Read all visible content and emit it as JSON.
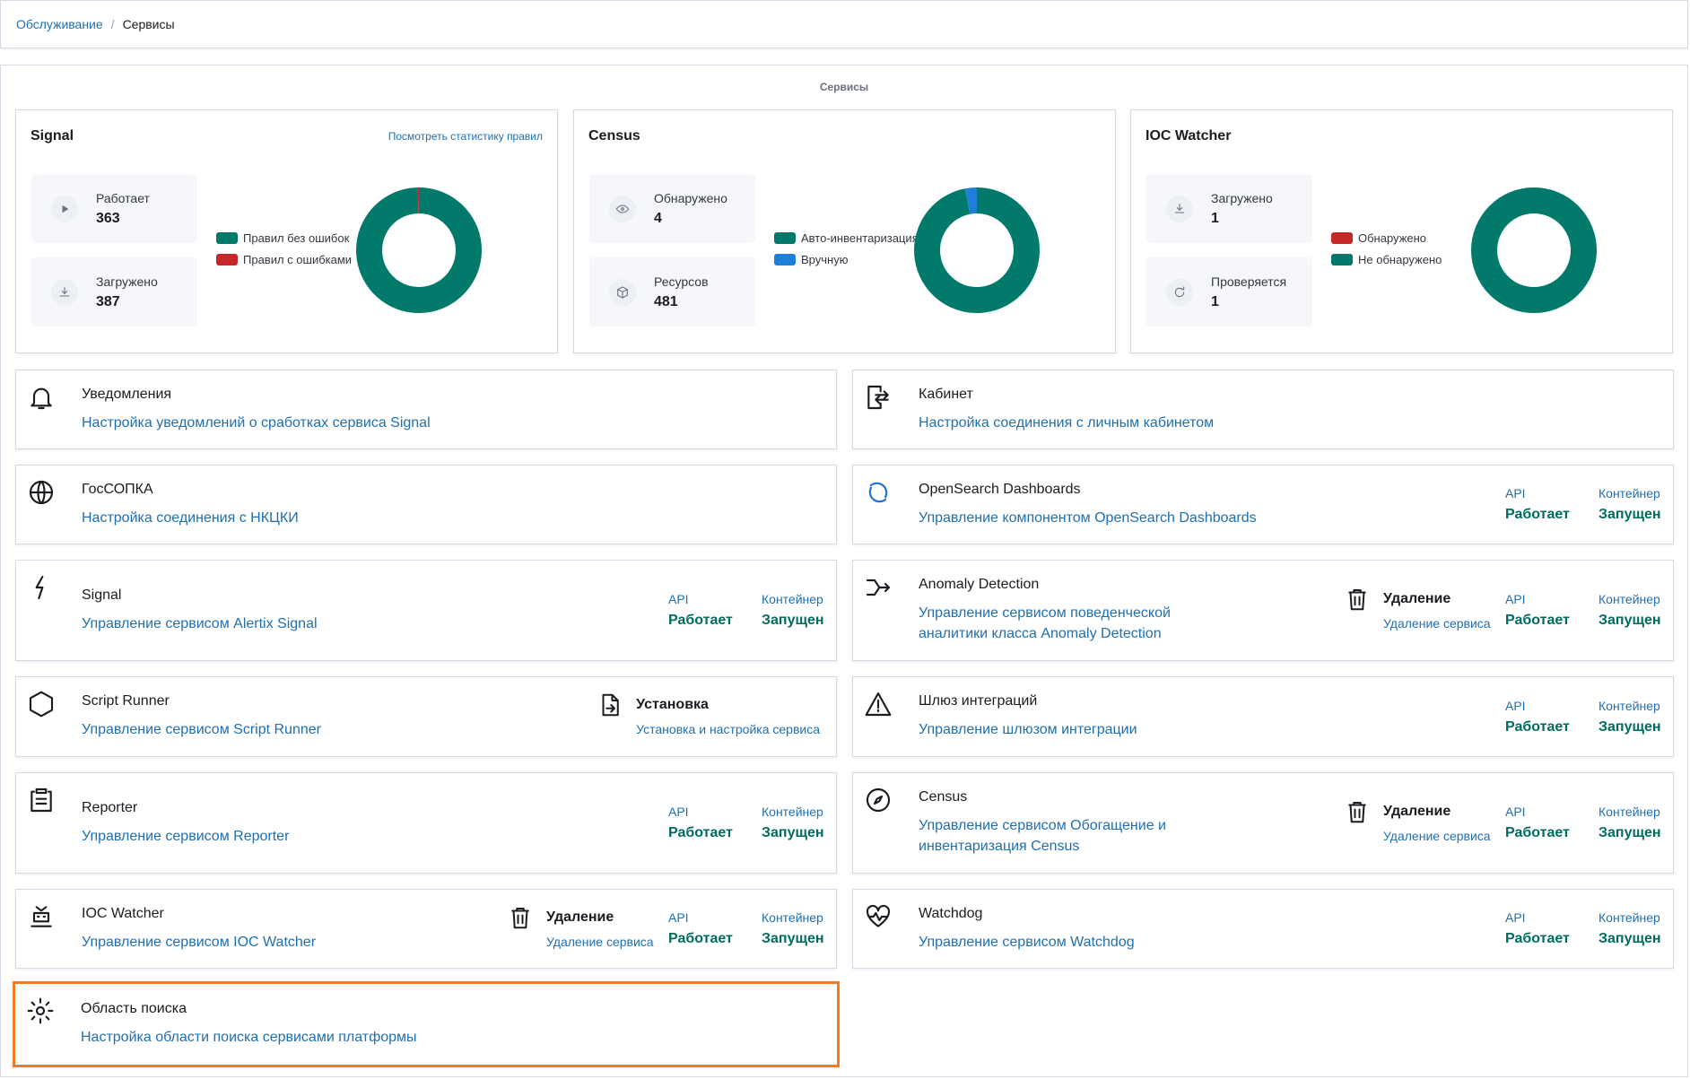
{
  "breadcrumb": [
    "Обслуживание",
    "Сервисы"
  ],
  "section_title": "Сервисы",
  "stat_cards": [
    {
      "title": "Signal",
      "link": "Посмотреть статистику правил",
      "stats": [
        {
          "label": "Работает",
          "value": 363
        },
        {
          "label": "Загружено",
          "value": 387
        }
      ]
    },
    {
      "title": "Census",
      "stats": [
        {
          "label": "Обнаружено",
          "value": 4
        },
        {
          "label": "Ресурсов",
          "value": 481
        }
      ]
    },
    {
      "title": "IOC Watcher",
      "stats": [
        {
          "label": "Загружено",
          "value": 1
        },
        {
          "label": "Проверяется",
          "value": 1
        }
      ]
    }
  ],
  "chart_data": [
    {
      "type": "pie",
      "categories": [
        "Правил без ошибок",
        "Правил с ошибками"
      ],
      "values": [
        386,
        1
      ],
      "colors": [
        "#017a6c",
        "#c62828"
      ]
    },
    {
      "type": "pie",
      "categories": [
        "Авто-инвентаризация",
        "Вручную"
      ],
      "values": [
        97,
        3
      ],
      "colors": [
        "#017a6c",
        "#1e7fd8"
      ]
    },
    {
      "type": "pie",
      "categories": [
        "Обнаружено",
        "Не обнаружено"
      ],
      "values": [
        0,
        1
      ],
      "colors": [
        "#c62828",
        "#017a6c"
      ]
    }
  ],
  "services": [
    {
      "title": "Уведомления",
      "link": "Настройка уведомлений о сработках сервиса Signal"
    },
    {
      "title": "Кабинет",
      "link": "Настройка соединения с личным кабинетом"
    },
    {
      "title": "ГосСОПКА",
      "link": "Настройка соединения с НКЦКИ"
    },
    {
      "title": "OpenSearch Dashboards",
      "link": "Управление компонентом OpenSearch Dashboards",
      "status": {
        "api_label": "API",
        "api_value": "Работает",
        "container_label": "Контейнер",
        "container_value": "Запущен"
      }
    },
    {
      "title": "Signal",
      "link": "Управление сервисом Alertix Signal",
      "status": {
        "api_label": "API",
        "api_value": "Работает",
        "container_label": "Контейнер",
        "container_value": "Запущен"
      }
    },
    {
      "title": "Anomaly Detection",
      "link": "Управление сервисом поведенческой аналитики класса Anomaly Detection",
      "action": {
        "title": "Удаление",
        "subtitle": "Удаление сервиса"
      },
      "status": {
        "api_label": "API",
        "api_value": "Работает",
        "container_label": "Контейнер",
        "container_value": "Запущен"
      }
    },
    {
      "title": "Script Runner",
      "link": "Управление сервисом Script Runner",
      "action": {
        "title": "Установка",
        "subtitle": "Установка и настройка сервиса"
      }
    },
    {
      "title": "Шлюз интеграций",
      "link": "Управление шлюзом интеграции",
      "status": {
        "api_label": "API",
        "api_value": "Работает",
        "container_label": "Контейнер",
        "container_value": "Запущен"
      }
    },
    {
      "title": "Reporter",
      "link": "Управление сервисом Reporter",
      "status": {
        "api_label": "API",
        "api_value": "Работает",
        "container_label": "Контейнер",
        "container_value": "Запущен"
      }
    },
    {
      "title": "Census",
      "link": "Управление сервисом Обогащение и инвентаризация Census",
      "action": {
        "title": "Удаление",
        "subtitle": "Удаление сервиса"
      },
      "status": {
        "api_label": "API",
        "api_value": "Работает",
        "container_label": "Контейнер",
        "container_value": "Запущен"
      }
    },
    {
      "title": "IOC Watcher",
      "link": "Управление сервисом IOC Watcher",
      "action": {
        "title": "Удаление",
        "subtitle": "Удаление сервиса"
      },
      "status": {
        "api_label": "API",
        "api_value": "Работает",
        "container_label": "Контейнер",
        "container_value": "Запущен"
      }
    },
    {
      "title": "Watchdog",
      "link": "Управление сервисом Watchdog",
      "status": {
        "api_label": "API",
        "api_value": "Работает",
        "container_label": "Контейнер",
        "container_value": "Запущен"
      }
    },
    {
      "title": "Область поиска",
      "link": "Настройка области поиска сервисами платформы",
      "highlighted": true
    }
  ]
}
